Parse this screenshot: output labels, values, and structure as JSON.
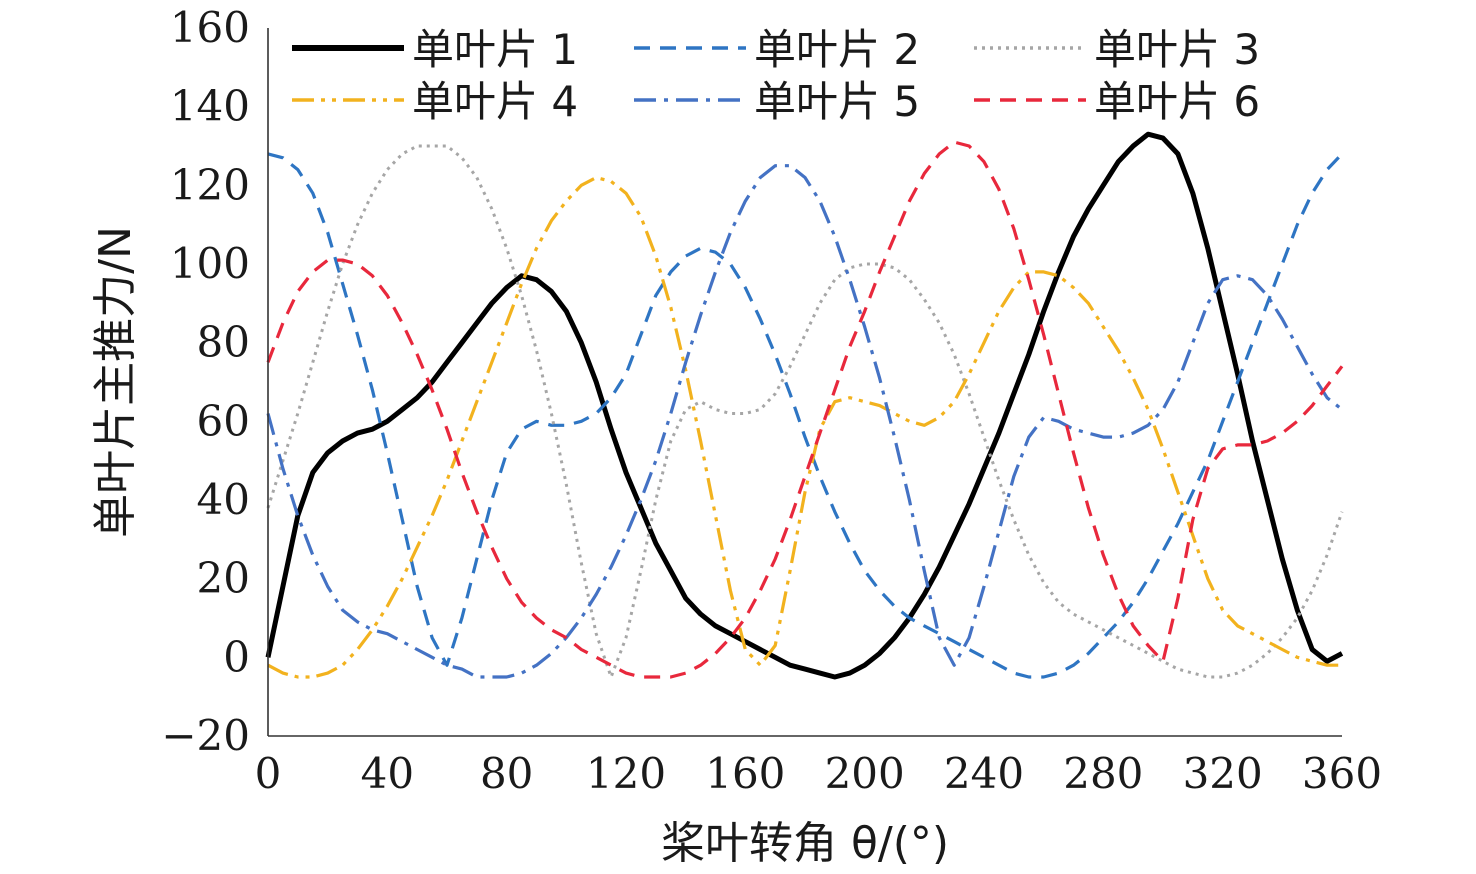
{
  "chart_data": {
    "type": "line",
    "xlabel": "桨叶转角 θ/(°)",
    "ylabel": "单叶片主推力/N",
    "xlim": [
      0,
      360
    ],
    "ylim": [
      -20,
      160
    ],
    "xticks": [
      0,
      40,
      80,
      120,
      160,
      200,
      240,
      280,
      320,
      360
    ],
    "yticks": [
      -20,
      0,
      20,
      40,
      60,
      80,
      100,
      120,
      140,
      160
    ],
    "xtick_labels": [
      "0",
      "40",
      "80",
      "120",
      "160",
      "200",
      "240",
      "280",
      "320",
      "360"
    ],
    "ytick_labels": [
      "−20",
      "0",
      "20",
      "40",
      "60",
      "80",
      "100",
      "120",
      "140",
      "160"
    ],
    "grid": false,
    "legend_position": "top",
    "series": [
      {
        "name": "单叶片 1",
        "color": "#000000",
        "style": "solid",
        "x": [
          0,
          5,
          10,
          15,
          20,
          25,
          30,
          35,
          40,
          45,
          50,
          55,
          60,
          65,
          70,
          75,
          80,
          85,
          90,
          95,
          100,
          105,
          110,
          115,
          120,
          125,
          130,
          135,
          140,
          145,
          150,
          155,
          160,
          165,
          170,
          175,
          180,
          185,
          190,
          195,
          200,
          205,
          210,
          215,
          220,
          225,
          230,
          235,
          240,
          245,
          250,
          255,
          260,
          265,
          270,
          275,
          280,
          285,
          290,
          295,
          300,
          305,
          310,
          315,
          320,
          325,
          330,
          335,
          340,
          345,
          350,
          355,
          360
        ],
        "y": [
          0,
          18,
          36,
          47,
          52,
          55,
          57,
          58,
          60,
          63,
          66,
          70,
          75,
          80,
          85,
          90,
          94,
          97,
          96,
          93,
          88,
          80,
          70,
          58,
          47,
          38,
          29,
          22,
          15,
          11,
          8,
          6,
          4,
          2,
          0,
          -2,
          -3,
          -4,
          -5,
          -4,
          -2,
          1,
          5,
          10,
          16,
          23,
          31,
          39,
          48,
          57,
          67,
          77,
          88,
          98,
          107,
          114,
          120,
          126,
          130,
          133,
          132,
          128,
          118,
          104,
          88,
          72,
          55,
          40,
          25,
          12,
          2,
          -1,
          1
        ]
      },
      {
        "name": "单叶片 2",
        "color": "#2e75c3",
        "style": "dashed",
        "x": [
          0,
          5,
          10,
          15,
          20,
          25,
          30,
          35,
          40,
          45,
          50,
          55,
          60,
          65,
          70,
          75,
          80,
          85,
          90,
          95,
          100,
          105,
          110,
          115,
          120,
          125,
          130,
          135,
          140,
          145,
          150,
          155,
          160,
          165,
          170,
          175,
          180,
          185,
          190,
          195,
          200,
          205,
          210,
          215,
          220,
          225,
          230,
          235,
          240,
          245,
          250,
          255,
          260,
          265,
          270,
          275,
          280,
          285,
          290,
          295,
          300,
          305,
          310,
          315,
          320,
          325,
          330,
          335,
          340,
          345,
          350,
          355,
          360
        ],
        "y": [
          128,
          127,
          124,
          118,
          108,
          95,
          82,
          68,
          52,
          35,
          18,
          5,
          -2,
          10,
          25,
          40,
          52,
          58,
          60,
          59,
          59,
          60,
          62,
          66,
          72,
          82,
          92,
          98,
          102,
          104,
          103,
          100,
          94,
          86,
          77,
          67,
          56,
          46,
          37,
          29,
          22,
          17,
          13,
          10,
          8,
          6,
          4,
          2,
          0,
          -2,
          -4,
          -5,
          -5,
          -4,
          -2,
          1,
          5,
          9,
          14,
          20,
          27,
          34,
          42,
          50,
          60,
          70,
          80,
          90,
          100,
          110,
          118,
          124,
          128
        ]
      },
      {
        "name": "单叶片 3",
        "color": "#a6a6a6",
        "style": "dotted",
        "x": [
          0,
          5,
          10,
          15,
          20,
          25,
          30,
          35,
          40,
          45,
          50,
          55,
          60,
          65,
          70,
          75,
          80,
          85,
          90,
          95,
          100,
          105,
          110,
          115,
          120,
          125,
          130,
          135,
          140,
          145,
          150,
          155,
          160,
          165,
          170,
          175,
          180,
          185,
          190,
          195,
          200,
          205,
          210,
          215,
          220,
          225,
          230,
          235,
          240,
          245,
          250,
          255,
          260,
          265,
          270,
          275,
          280,
          285,
          290,
          295,
          300,
          305,
          310,
          315,
          320,
          325,
          330,
          335,
          340,
          345,
          350,
          355,
          360
        ],
        "y": [
          38,
          50,
          62,
          75,
          88,
          100,
          110,
          118,
          124,
          128,
          130,
          130,
          130,
          127,
          122,
          114,
          104,
          92,
          78,
          62,
          44,
          24,
          6,
          -5,
          5,
          22,
          40,
          55,
          63,
          65,
          63,
          62,
          62,
          63,
          67,
          74,
          82,
          90,
          96,
          99,
          100,
          100,
          99,
          96,
          91,
          85,
          77,
          67,
          56,
          45,
          35,
          26,
          19,
          14,
          11,
          9,
          7,
          5,
          3,
          1,
          -1,
          -3,
          -4,
          -5,
          -5,
          -4,
          -2,
          1,
          5,
          10,
          17,
          26,
          37
        ]
      },
      {
        "name": "单叶片 4",
        "color": "#f2b21e",
        "style": "dash-dot-dot",
        "x": [
          0,
          5,
          10,
          15,
          20,
          25,
          30,
          35,
          40,
          45,
          50,
          55,
          60,
          65,
          70,
          75,
          80,
          85,
          90,
          95,
          100,
          105,
          110,
          115,
          120,
          125,
          130,
          135,
          140,
          145,
          150,
          155,
          160,
          165,
          170,
          175,
          180,
          185,
          190,
          195,
          200,
          205,
          210,
          215,
          220,
          225,
          230,
          235,
          240,
          245,
          250,
          255,
          260,
          265,
          270,
          275,
          280,
          285,
          290,
          295,
          300,
          305,
          310,
          315,
          320,
          325,
          330,
          335,
          340,
          345,
          350,
          355,
          360
        ],
        "y": [
          -2,
          -4,
          -5,
          -5,
          -4,
          -2,
          2,
          7,
          13,
          20,
          28,
          36,
          45,
          55,
          65,
          75,
          85,
          95,
          104,
          111,
          116,
          120,
          122,
          121,
          118,
          112,
          102,
          89,
          73,
          55,
          36,
          17,
          2,
          -2,
          3,
          22,
          42,
          58,
          65,
          66,
          65,
          64,
          62,
          60,
          59,
          61,
          65,
          72,
          80,
          88,
          94,
          98,
          98,
          97,
          94,
          90,
          84,
          78,
          71,
          63,
          53,
          42,
          31,
          20,
          12,
          8,
          6,
          4,
          2,
          0,
          -1,
          -2,
          -2
        ]
      },
      {
        "name": "单叶片 5",
        "color": "#4472c4",
        "style": "dash-dot",
        "x": [
          0,
          5,
          10,
          15,
          20,
          25,
          30,
          35,
          40,
          45,
          50,
          55,
          60,
          65,
          70,
          75,
          80,
          85,
          90,
          95,
          100,
          105,
          110,
          115,
          120,
          125,
          130,
          135,
          140,
          145,
          150,
          155,
          160,
          165,
          170,
          175,
          180,
          185,
          190,
          195,
          200,
          205,
          210,
          215,
          220,
          225,
          230,
          235,
          240,
          245,
          250,
          255,
          260,
          265,
          270,
          275,
          280,
          285,
          290,
          295,
          300,
          305,
          310,
          315,
          320,
          325,
          330,
          335,
          340,
          345,
          350,
          355,
          360
        ],
        "y": [
          62,
          48,
          36,
          26,
          18,
          12,
          9,
          7,
          6,
          4,
          2,
          0,
          -2,
          -3,
          -5,
          -5,
          -5,
          -4,
          -2,
          1,
          5,
          10,
          16,
          23,
          31,
          40,
          50,
          62,
          75,
          87,
          98,
          108,
          116,
          122,
          125,
          125,
          122,
          116,
          107,
          96,
          84,
          71,
          56,
          40,
          22,
          5,
          -2,
          5,
          18,
          32,
          46,
          56,
          61,
          60,
          58,
          57,
          56,
          56,
          57,
          59,
          63,
          70,
          80,
          90,
          96,
          97,
          96,
          92,
          86,
          79,
          72,
          66,
          63
        ]
      },
      {
        "name": "单叶片 6",
        "color": "#e8283c",
        "style": "dashed",
        "x": [
          0,
          5,
          10,
          15,
          20,
          25,
          30,
          35,
          40,
          45,
          50,
          55,
          60,
          65,
          70,
          75,
          80,
          85,
          90,
          95,
          100,
          105,
          110,
          115,
          120,
          125,
          130,
          135,
          140,
          145,
          150,
          155,
          160,
          165,
          170,
          175,
          180,
          185,
          190,
          195,
          200,
          205,
          210,
          215,
          220,
          225,
          230,
          235,
          240,
          245,
          250,
          255,
          260,
          265,
          270,
          275,
          280,
          285,
          290,
          295,
          300,
          305,
          310,
          315,
          320,
          325,
          330,
          335,
          340,
          345,
          350,
          355,
          360
        ],
        "y": [
          75,
          85,
          93,
          98,
          101,
          101,
          100,
          97,
          92,
          85,
          77,
          68,
          58,
          47,
          37,
          28,
          20,
          14,
          10,
          7,
          5,
          2,
          0,
          -2,
          -4,
          -5,
          -5,
          -5,
          -4,
          -2,
          1,
          5,
          10,
          17,
          25,
          35,
          46,
          57,
          68,
          79,
          88,
          98,
          107,
          116,
          123,
          128,
          131,
          130,
          126,
          119,
          109,
          96,
          82,
          67,
          52,
          38,
          26,
          16,
          8,
          3,
          -1,
          15,
          35,
          48,
          53,
          54,
          54,
          55,
          57,
          60,
          64,
          69,
          74
        ]
      }
    ]
  }
}
